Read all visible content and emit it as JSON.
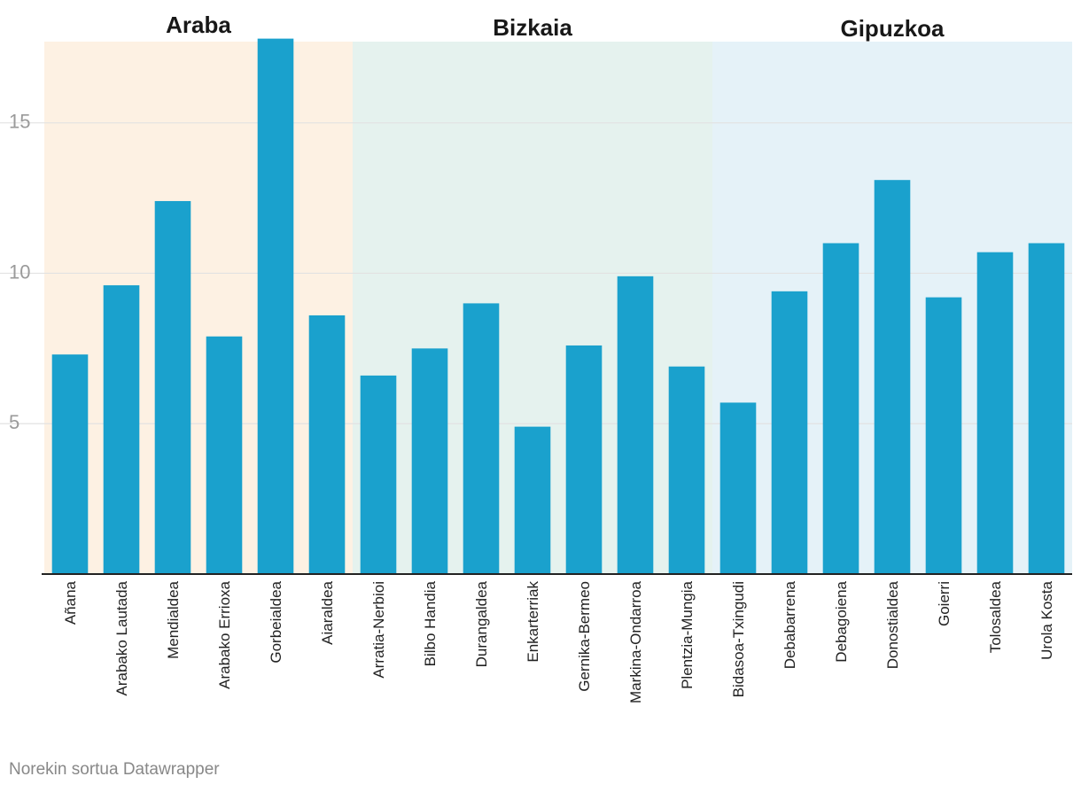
{
  "chart_data": {
    "type": "bar",
    "groups": [
      {
        "label": "Araba",
        "start": 0,
        "end": 5,
        "color": "#fdf1e3"
      },
      {
        "label": "Bizkaia",
        "start": 6,
        "end": 12,
        "color": "#e5f2ee"
      },
      {
        "label": "Gipuzkoa",
        "start": 13,
        "end": 19,
        "color": "#e5f2f8"
      }
    ],
    "categories": [
      "Añana",
      "Arabako Lautada",
      "Mendialdea",
      "Arabako Errioxa",
      "Gorbeialdea",
      "Aiaraldea",
      "Arratia-Nerbioi",
      "Bilbo Handia",
      "Durangaldea",
      "Enkarterriak",
      "Gernika-Bermeo",
      "Markina-Ondarroa",
      "Plentzia-Mungia",
      "Bidasoa-Txingudi",
      "Debabarrena",
      "Debagoiena",
      "Donostialdea",
      "Goierri",
      "Tolosaldea",
      "Urola Kosta"
    ],
    "values": [
      7.3,
      9.6,
      12.4,
      7.9,
      17.8,
      8.6,
      6.6,
      7.5,
      9.0,
      4.9,
      7.6,
      9.9,
      6.9,
      5.7,
      9.4,
      11.0,
      13.1,
      9.2,
      10.7,
      11.0
    ],
    "yticks": [
      5,
      10,
      15
    ],
    "ylim": [
      0,
      17.7
    ],
    "grid": true,
    "bar_color": "#1aa1cd"
  },
  "footer": {
    "credit": "Norekin sortua Datawrapper"
  }
}
